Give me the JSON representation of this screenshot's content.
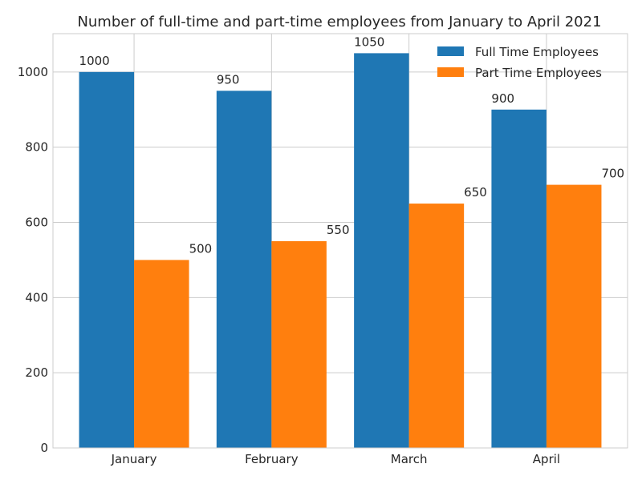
{
  "chart_data": {
    "type": "bar",
    "title": "Number of full-time and part-time employees from January to April 2021",
    "xlabel": "",
    "ylabel": "",
    "categories": [
      "January",
      "February",
      "March",
      "April"
    ],
    "series": [
      {
        "name": "Full Time Employees",
        "values": [
          1000,
          950,
          1050,
          900
        ],
        "color": "#1f77b4"
      },
      {
        "name": "Part Time Employees",
        "values": [
          500,
          550,
          650,
          700
        ],
        "color": "#ff7f0e"
      }
    ],
    "ylim": [
      0,
      1102
    ],
    "yticks": [
      0,
      200,
      400,
      600,
      800,
      1000
    ],
    "grid": true,
    "legend": "top-right",
    "data_labels": true
  }
}
